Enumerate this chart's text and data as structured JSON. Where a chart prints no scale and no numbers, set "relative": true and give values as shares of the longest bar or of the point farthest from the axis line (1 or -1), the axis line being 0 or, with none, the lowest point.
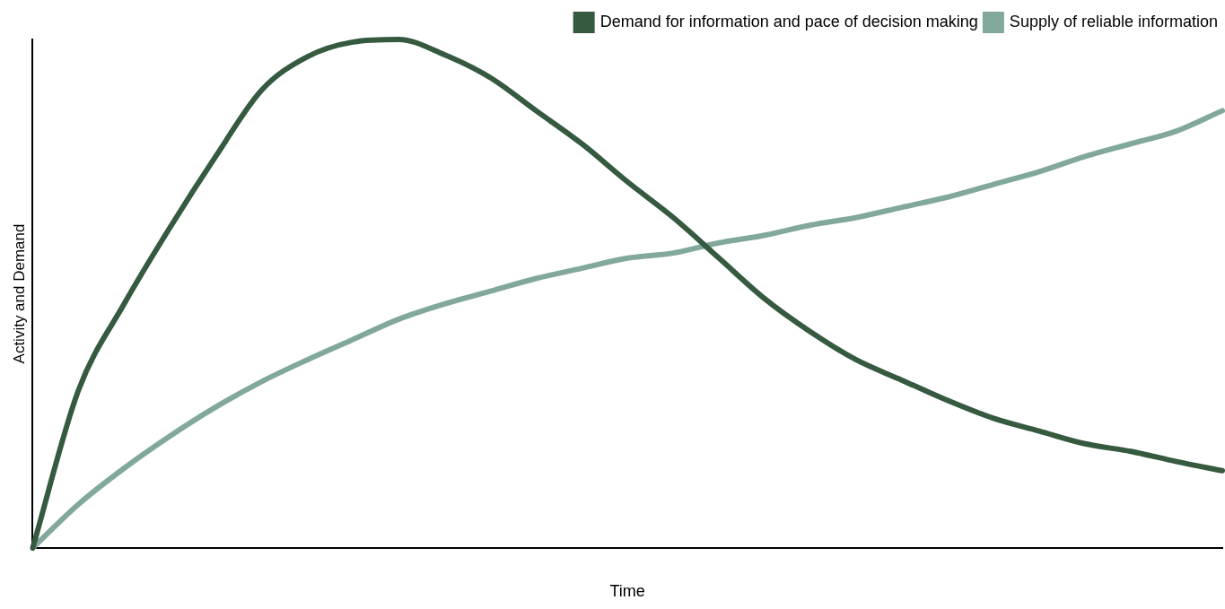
{
  "chart_data": {
    "type": "line",
    "relative": true,
    "xlabel": "Time",
    "ylabel": "Activity and Demand",
    "legend": "top right",
    "grid": false,
    "marker": "none",
    "line_style": "solid",
    "categories": [
      null,
      null,
      null,
      null,
      null,
      null,
      null,
      null,
      null,
      null,
      null,
      null,
      null,
      null,
      null,
      null,
      null,
      null,
      null,
      null,
      null,
      null,
      null,
      null,
      null,
      null,
      null
    ],
    "series": [
      {
        "name": "Demand for information and pace of decision making",
        "color": "#355a3f",
        "values": [
          0,
          0.31,
          0.48,
          0.63,
          0.77,
          0.9,
          0.966,
          0.995,
          1,
          0.97,
          0.925,
          0.86,
          0.795,
          0.72,
          0.65,
          0.57,
          0.49,
          0.425,
          0.37,
          0.33,
          0.29,
          0.255,
          0.23,
          0.205,
          0.19,
          0.17,
          0.152
        ]
      },
      {
        "name": "Supply of reliable information",
        "color": "#82a89c",
        "values": [
          0,
          0.086,
          0.157,
          0.22,
          0.277,
          0.327,
          0.37,
          0.41,
          0.45,
          0.48,
          0.505,
          0.53,
          0.55,
          0.57,
          0.58,
          0.6,
          0.615,
          0.635,
          0.65,
          0.67,
          0.69,
          0.715,
          0.74,
          0.77,
          0.795,
          0.82,
          0.86
        ]
      }
    ]
  }
}
